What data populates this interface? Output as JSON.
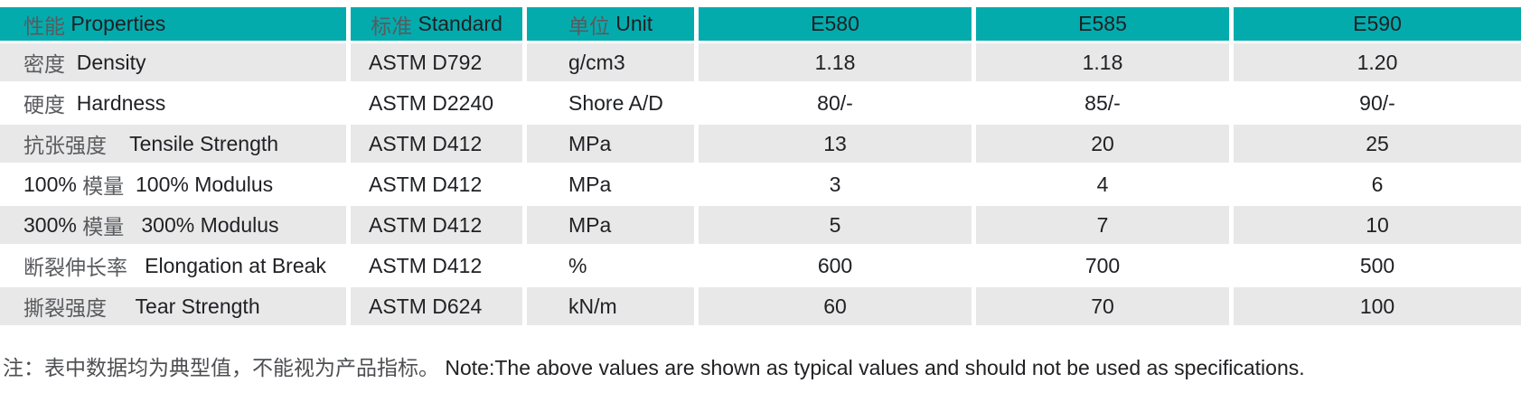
{
  "colors": {
    "header_bg": "#04abad",
    "row_alt_bg": "#e8e8e9",
    "row_bg": "#ffffff",
    "text": "#202124",
    "text_cjk": "#5a5b5e"
  },
  "table": {
    "columns": [
      {
        "id": "property",
        "label": "性能 Properties"
      },
      {
        "id": "standard",
        "label": "标准 Standard"
      },
      {
        "id": "unit",
        "label": "单位 Unit"
      },
      {
        "id": "e580",
        "label": "E580"
      },
      {
        "id": "e585",
        "label": "E585"
      },
      {
        "id": "e590",
        "label": "E590"
      }
    ],
    "rows": [
      {
        "property": "密度  Density",
        "standard": "ASTM D792",
        "unit": "g/cm3",
        "e580": "1.18",
        "e585": "1.18",
        "e590": "1.20"
      },
      {
        "property": "硬度  Hardness",
        "standard": "ASTM D2240",
        "unit": "Shore A/D",
        "e580": "80/-",
        "e585": "85/-",
        "e590": "90/-"
      },
      {
        "property": "抗张强度    Tensile Strength",
        "standard": "ASTM D412",
        "unit": "MPa",
        "e580": "13",
        "e585": "20",
        "e590": "25"
      },
      {
        "property": "100% 模量  100% Modulus",
        "standard": "ASTM D412",
        "unit": "MPa",
        "e580": "3",
        "e585": "4",
        "e590": "6"
      },
      {
        "property": "300% 模量   300% Modulus",
        "standard": "ASTM D412",
        "unit": "MPa",
        "e580": "5",
        "e585": "7",
        "e590": "10"
      },
      {
        "property": "断裂伸长率   Elongation at Break",
        "standard": "ASTM D412",
        "unit": "%",
        "e580": "600",
        "e585": "700",
        "e590": "500"
      },
      {
        "property": "撕裂强度     Tear Strength",
        "standard": "ASTM D624",
        "unit": "kN/m",
        "e580": "60",
        "e585": "70",
        "e590": "100"
      }
    ]
  },
  "footnote": "注：表中数据均为典型值，不能视为产品指标。 Note:The above values are shown as typical values and should not be used as specifications."
}
